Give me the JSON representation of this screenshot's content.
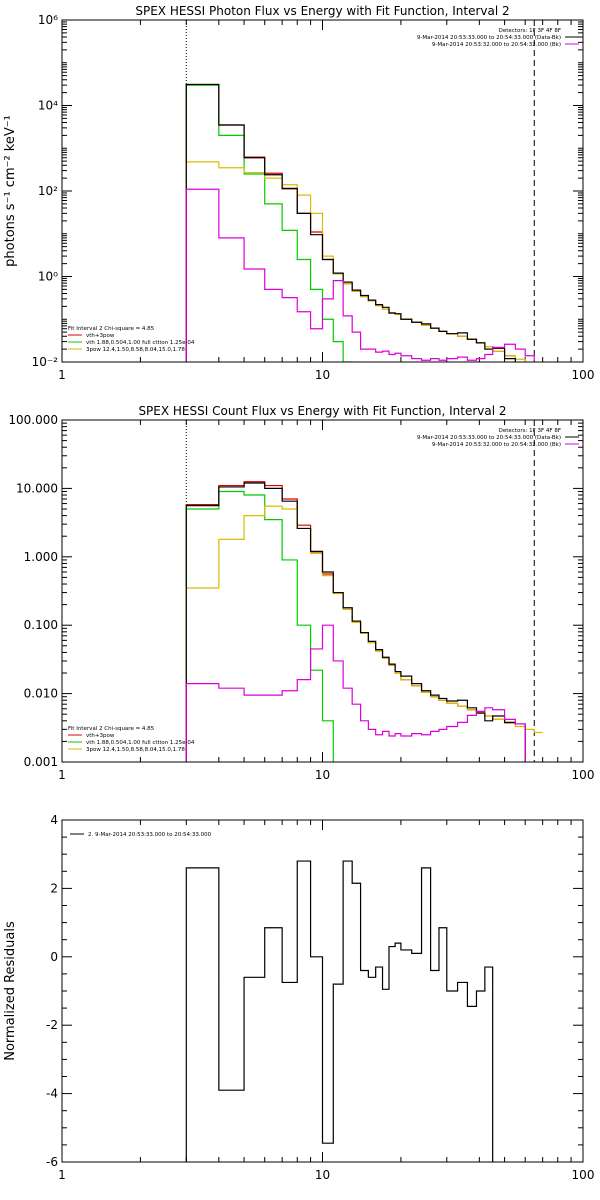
{
  "chart_data": [
    {
      "type": "line",
      "title": "SPEX HESSI Photon Flux vs Energy with Fit Function, Interval 2",
      "ylabel": "photons s⁻¹ cm⁻² keV⁻¹",
      "xlabel": "",
      "xscale": "log",
      "yscale": "log",
      "xlim": [
        1,
        100
      ],
      "ylim": [
        0.01,
        1000000
      ],
      "xticks": [
        "1",
        "10",
        "100"
      ],
      "yticks": [
        "10⁻²",
        "10⁰",
        "10²",
        "10⁴",
        "10⁶"
      ],
      "fit_range_low": 3,
      "fit_range_high": 65,
      "legend_top_right": {
        "detectors": "Detectors: 1F 3F 4F 8F",
        "entries": [
          {
            "label": "9-Mar-2014 20:53:33.000 to 20:54:33.000 (Data-Bk)",
            "color": "#000000"
          },
          {
            "label": "9-Mar-2014 20:53:32.000 to 20:54:32.000 (Bk)",
            "color": "#dd00dd"
          }
        ]
      },
      "legend_bottom_left": {
        "header": "Fit Interval  2    Chi-square = 4.85",
        "entries": [
          {
            "label": "vth+3pow",
            "color": "#dd0000"
          },
          {
            "label": "vth  1.88,0.504,1.00   full cttion 1.25e-04",
            "color": "#00cc00"
          },
          {
            "label": "3pow  12.4,1.50,8.58,8.04,15.0,1.78",
            "color": "#ddbb00"
          }
        ]
      },
      "edges": [
        3,
        4,
        5,
        6,
        7,
        8,
        9,
        10,
        11,
        12,
        13,
        14,
        15,
        16,
        17,
        18,
        19,
        20,
        22,
        24,
        26,
        28,
        30,
        33,
        36,
        39,
        42,
        45,
        50,
        55,
        60,
        65,
        70,
        75,
        80,
        90,
        100
      ],
      "series": [
        {
          "name": "vth+3pow",
          "color": "#dd0000",
          "values": [
            31000,
            3500,
            620,
            260,
            112,
            30,
            11,
            2.5,
            1.15,
            0.68,
            0.45,
            0.34,
            0.27,
            0.21,
            0.17,
            0.14,
            0.13,
            0.1,
            0.085,
            0.072,
            0.062,
            0.053,
            0.046,
            0.04,
            0.034,
            0.028,
            0.023,
            0.018,
            0.014
          ]
        },
        {
          "name": "vth",
          "color": "#00cc00",
          "values": [
            30000,
            2000,
            250,
            50,
            12,
            2.5,
            0.5,
            0.1,
            0.03,
            0.01
          ]
        },
        {
          "name": "3pow",
          "color": "#ddbb00",
          "values": [
            480,
            350,
            270,
            200,
            140,
            80,
            30,
            3,
            1.15,
            0.68,
            0.45,
            0.34,
            0.27,
            0.21,
            0.17,
            0.14,
            0.13,
            0.1,
            0.085,
            0.072,
            0.062,
            0.053,
            0.046,
            0.04,
            0.034,
            0.028,
            0.023,
            0.018,
            0.014,
            0.0116,
            0.0096,
            0.0081,
            0.007,
            0.006,
            0.005,
            0.004
          ]
        },
        {
          "name": "Data-Bk",
          "color": "#000000",
          "values": [
            31000,
            3500,
            600,
            240,
            115,
            30,
            9.5,
            2.5,
            1.2,
            0.74,
            0.48,
            0.36,
            0.28,
            0.22,
            0.19,
            0.14,
            0.135,
            0.1,
            0.085,
            0.078,
            0.062,
            0.052,
            0.046,
            0.048,
            0.034,
            0.028,
            0.02,
            0.021,
            0.012,
            0.008,
            0.006
          ]
        },
        {
          "name": "Bk",
          "color": "#dd00dd",
          "values": [
            110,
            8,
            1.5,
            0.5,
            0.32,
            0.15,
            0.06,
            0.3,
            0.8,
            0.12,
            0.05,
            0.02,
            0.02,
            0.017,
            0.018,
            0.015,
            0.016,
            0.014,
            0.012,
            0.011,
            0.012,
            0.011,
            0.012,
            0.013,
            0.011,
            0.012,
            0.015,
            0.022,
            0.026,
            0.02,
            0.014
          ]
        }
      ]
    },
    {
      "type": "line",
      "title": "SPEX HESSI Count Flux vs Energy with Fit Function, Interval 2",
      "ylabel": "",
      "xlabel": "",
      "xscale": "log",
      "yscale": "log",
      "xlim": [
        1,
        100
      ],
      "ylim": [
        0.001,
        100
      ],
      "xticks": [
        "1",
        "10",
        "100"
      ],
      "yticks": [
        "0.001",
        "0.010",
        "0.100",
        "1.000",
        "10.000",
        "100.000"
      ],
      "fit_range_low": 3,
      "fit_range_high": 65,
      "legend_top_right": {
        "detectors": "Detectors: 1F 3F 4F 8F",
        "entries": [
          {
            "label": "9-Mar-2014 20:53:33.000 to 20:54:33.000 (Data-Bk)",
            "color": "#000000"
          },
          {
            "label": "9-Mar-2014 20:53:32.000 to 20:54:32.000 (Bk)",
            "color": "#dd00dd"
          }
        ]
      },
      "legend_bottom_left": {
        "header": "Fit Interval  2    Chi-square = 4.85",
        "entries": [
          {
            "label": "vth+3pow",
            "color": "#dd0000"
          },
          {
            "label": "vth  1.88,0.504,1.00   full cttion 1.25e-04",
            "color": "#00cc00"
          },
          {
            "label": "3pow  12.4,1.50,8.58,8.04,15.0,1.78",
            "color": "#ddbb00"
          }
        ]
      },
      "edges": [
        3,
        4,
        5,
        6,
        7,
        8,
        9,
        10,
        11,
        12,
        13,
        14,
        15,
        16,
        17,
        18,
        19,
        20,
        22,
        24,
        26,
        28,
        30,
        33,
        36,
        39,
        42,
        45,
        50,
        55,
        60,
        65,
        70,
        75,
        80,
        90,
        100
      ],
      "series": [
        {
          "name": "vth+3pow",
          "color": "#dd0000",
          "values": [
            5.8,
            11,
            12.5,
            11,
            7,
            2.9,
            1.18,
            0.56,
            0.3,
            0.17,
            0.11,
            0.076,
            0.055,
            0.042,
            0.033,
            0.026,
            0.02,
            0.016,
            0.013,
            0.0105,
            0.009,
            0.008,
            0.0072,
            0.0065,
            0.0058,
            0.0052,
            0.0047,
            0.0042,
            0.0037
          ]
        },
        {
          "name": "vth",
          "color": "#00cc00",
          "values": [
            5.0,
            9.0,
            8.0,
            3.5,
            0.9,
            0.1,
            0.022,
            0.004,
            0.0008
          ]
        },
        {
          "name": "3pow",
          "color": "#ddbb00",
          "values": [
            0.35,
            1.8,
            4.0,
            5.5,
            5.0,
            2.6,
            1.12,
            0.53,
            0.29,
            0.17,
            0.11,
            0.076,
            0.055,
            0.042,
            0.033,
            0.026,
            0.02,
            0.016,
            0.013,
            0.0105,
            0.009,
            0.008,
            0.0072,
            0.0065,
            0.0058,
            0.0052,
            0.0047,
            0.0042,
            0.0037,
            0.0033,
            0.003,
            0.0027
          ]
        },
        {
          "name": "Data-Bk",
          "color": "#000000",
          "values": [
            5.6,
            10.5,
            12,
            10,
            6.5,
            2.6,
            1.2,
            0.6,
            0.3,
            0.18,
            0.115,
            0.078,
            0.058,
            0.044,
            0.034,
            0.027,
            0.021,
            0.018,
            0.014,
            0.011,
            0.0095,
            0.0085,
            0.0078,
            0.008,
            0.0062,
            0.0052,
            0.004,
            0.0047,
            0.0038,
            0.0036
          ]
        },
        {
          "name": "Bk",
          "color": "#dd00dd",
          "values": [
            0.014,
            0.012,
            0.0095,
            0.0095,
            0.011,
            0.016,
            0.045,
            0.1,
            0.03,
            0.012,
            0.007,
            0.004,
            0.003,
            0.0025,
            0.0028,
            0.0024,
            0.0026,
            0.0024,
            0.0026,
            0.0025,
            0.0028,
            0.003,
            0.0033,
            0.0038,
            0.0048,
            0.0055,
            0.0062,
            0.0058,
            0.0042,
            0.0036
          ]
        }
      ]
    },
    {
      "type": "line",
      "title": "",
      "ylabel": "Normalized Residuals",
      "xlabel": "",
      "xscale": "log",
      "yscale": "linear",
      "xlim": [
        1,
        100
      ],
      "ylim": [
        -6,
        4
      ],
      "xticks": [
        "1",
        "10",
        "100"
      ],
      "yticks": [
        "-6",
        "-4",
        "-2",
        "0",
        "2",
        "4"
      ],
      "legend_top_left": {
        "entries": [
          {
            "label": "2.  9-Mar-2014 20:53:33.000 to 20:54:33.000",
            "color": "#000000"
          }
        ]
      },
      "edges": [
        3,
        4,
        5,
        6,
        7,
        8,
        9,
        10,
        11,
        12,
        13,
        14,
        15,
        16,
        17,
        18,
        19,
        20,
        22,
        24,
        26,
        28,
        30,
        33,
        36,
        39,
        42,
        45,
        50,
        55,
        60,
        65
      ],
      "series": [
        {
          "name": "2.",
          "color": "#000000",
          "values": [
            2.6,
            -3.9,
            -0.6,
            0.85,
            -0.75,
            2.8,
            0,
            -5.45,
            -0.8,
            2.8,
            2.15,
            -0.4,
            -0.6,
            -0.3,
            -0.95,
            0.3,
            0.4,
            0.2,
            0.1,
            2.6,
            -0.4,
            0.85,
            -1.0,
            -0.75,
            -1.45,
            -1.0,
            -0.3
          ]
        }
      ]
    }
  ]
}
